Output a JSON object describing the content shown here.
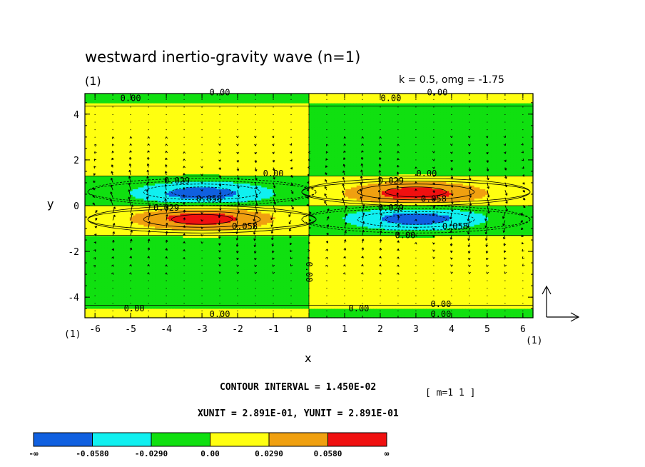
{
  "chart_data": {
    "type": "heatmap",
    "title": "westward inertio-gravity wave (n=1)",
    "panel_label": "(1)",
    "parameters": "k = 0.5, omg = -1.75",
    "xlabel": "x",
    "ylabel": "y",
    "x_ticks": [
      -6,
      -5,
      -4,
      -3,
      -2,
      -1,
      0,
      1,
      2,
      3,
      4,
      5,
      6
    ],
    "y_ticks": [
      -4,
      -2,
      0,
      2,
      4
    ],
    "xlim": [
      -6.283,
      6.283
    ],
    "ylim": [
      -4.9,
      4.9
    ],
    "x_corner_labels": [
      "(1)",
      "(1)"
    ],
    "contour_interval": 0.0145,
    "contour_interval_label": "CONTOUR INTERVAL = 1.450E-02",
    "mode_label": "[ m=1 1 ]",
    "unit_label": "XUNIT = 2.891E-01, YUNIT = 2.891E-01",
    "colorbar": {
      "labels": [
        "-∞",
        "-0.0580",
        "-0.0290",
        "0.00",
        "0.0290",
        "0.0580",
        "∞"
      ],
      "bins": [
        {
          "range": [
            null,
            -0.058
          ],
          "color": "#1060e0"
        },
        {
          "range": [
            -0.058,
            -0.029
          ],
          "color": "#10f0f0"
        },
        {
          "range": [
            -0.029,
            0.0
          ],
          "color": "#10e010"
        },
        {
          "range": [
            0.0,
            0.029
          ],
          "color": "#ffff10"
        },
        {
          "range": [
            0.029,
            0.058
          ],
          "color": "#f0a010"
        },
        {
          "range": [
            0.058,
            null
          ],
          "color": "#f01010"
        }
      ]
    },
    "field_extrema": [
      {
        "x": -3.0,
        "y": 0.6,
        "value": -0.072
      },
      {
        "x": -3.0,
        "y": -0.6,
        "value": 0.072
      },
      {
        "x": 3.0,
        "y": 0.6,
        "value": 0.072
      },
      {
        "x": 3.0,
        "y": -0.6,
        "value": -0.072
      }
    ],
    "contour_labels": [
      {
        "text": "0.00",
        "x": -5.0,
        "y": 4.7
      },
      {
        "text": "0.00",
        "x": -2.5,
        "y": 4.95
      },
      {
        "text": "0.00",
        "x": 2.3,
        "y": 4.7
      },
      {
        "text": "0.00",
        "x": 3.6,
        "y": 4.95
      },
      {
        "text": "0.029",
        "x": -3.7,
        "y": 1.1
      },
      {
        "text": "0.00",
        "x": -1.0,
        "y": 1.4
      },
      {
        "text": "0.058",
        "x": -2.8,
        "y": 0.3
      },
      {
        "text": "0.029",
        "x": -4.0,
        "y": -0.1
      },
      {
        "text": "0.058",
        "x": -1.8,
        "y": -0.9
      },
      {
        "text": "0.029",
        "x": 2.3,
        "y": 1.1
      },
      {
        "text": "0.00",
        "x": 3.3,
        "y": 1.4
      },
      {
        "text": "0.058",
        "x": 3.5,
        "y": 0.3
      },
      {
        "text": "0.029",
        "x": 2.3,
        "y": -0.1
      },
      {
        "text": "0.058",
        "x": 4.1,
        "y": -0.9
      },
      {
        "text": "0.00",
        "x": 2.7,
        "y": -1.3
      },
      {
        "text": "0.00",
        "x": -4.9,
        "y": -4.5
      },
      {
        "text": "0.00",
        "x": -2.5,
        "y": -4.75
      },
      {
        "text": "0.00",
        "x": 1.4,
        "y": -4.5
      },
      {
        "text": "0.00",
        "x": 3.7,
        "y": -4.3
      },
      {
        "text": "0.00",
        "x": 3.7,
        "y": -4.75
      },
      {
        "text": "0.00",
        "x": 0.0,
        "y": -2.9
      }
    ],
    "legend": "vector reference arrows (bottom-right)"
  }
}
